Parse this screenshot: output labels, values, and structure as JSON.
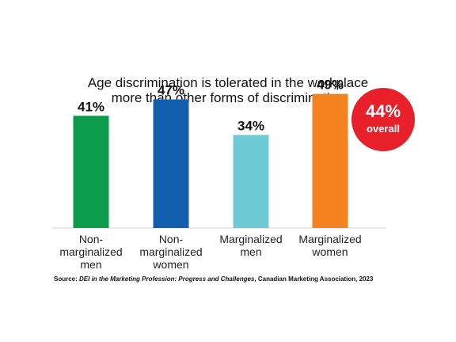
{
  "chart_data": {
    "type": "bar",
    "title": "Age discrimination is tolerated in the workplace more than other forms of discrimination",
    "title_lines": [
      "Age discrimination is tolerated in the workplace",
      "more than other forms of discrimination"
    ],
    "categories": [
      "Non-marginalized men",
      "Non-marginalized women",
      "Marginalized men",
      "Marginalized women"
    ],
    "category_label_lines": [
      [
        "Non-",
        "marginalized",
        "men"
      ],
      [
        "Non-",
        "marginalized",
        "women"
      ],
      [
        "Marginalized",
        "men"
      ],
      [
        "Marginalized",
        "women"
      ]
    ],
    "values": [
      41,
      47,
      34,
      49
    ],
    "value_labels": [
      "41%",
      "47%",
      "34%",
      "49%"
    ],
    "unit": "%",
    "bar_colors": [
      "#0c9a4d",
      "#125fae",
      "#6fcbd3",
      "#f3821f"
    ],
    "ylim": [
      0,
      100
    ],
    "grid": false,
    "xlabel": "",
    "ylabel": "",
    "overall": {
      "value": "44%",
      "label": "overall",
      "color": "#e8202a"
    },
    "source": {
      "prefix": "Source: ",
      "title": "DEI in the Marketing Profession: Progress and Challenges",
      "suffix": ", Canadian Marketing Association, 2023"
    }
  }
}
